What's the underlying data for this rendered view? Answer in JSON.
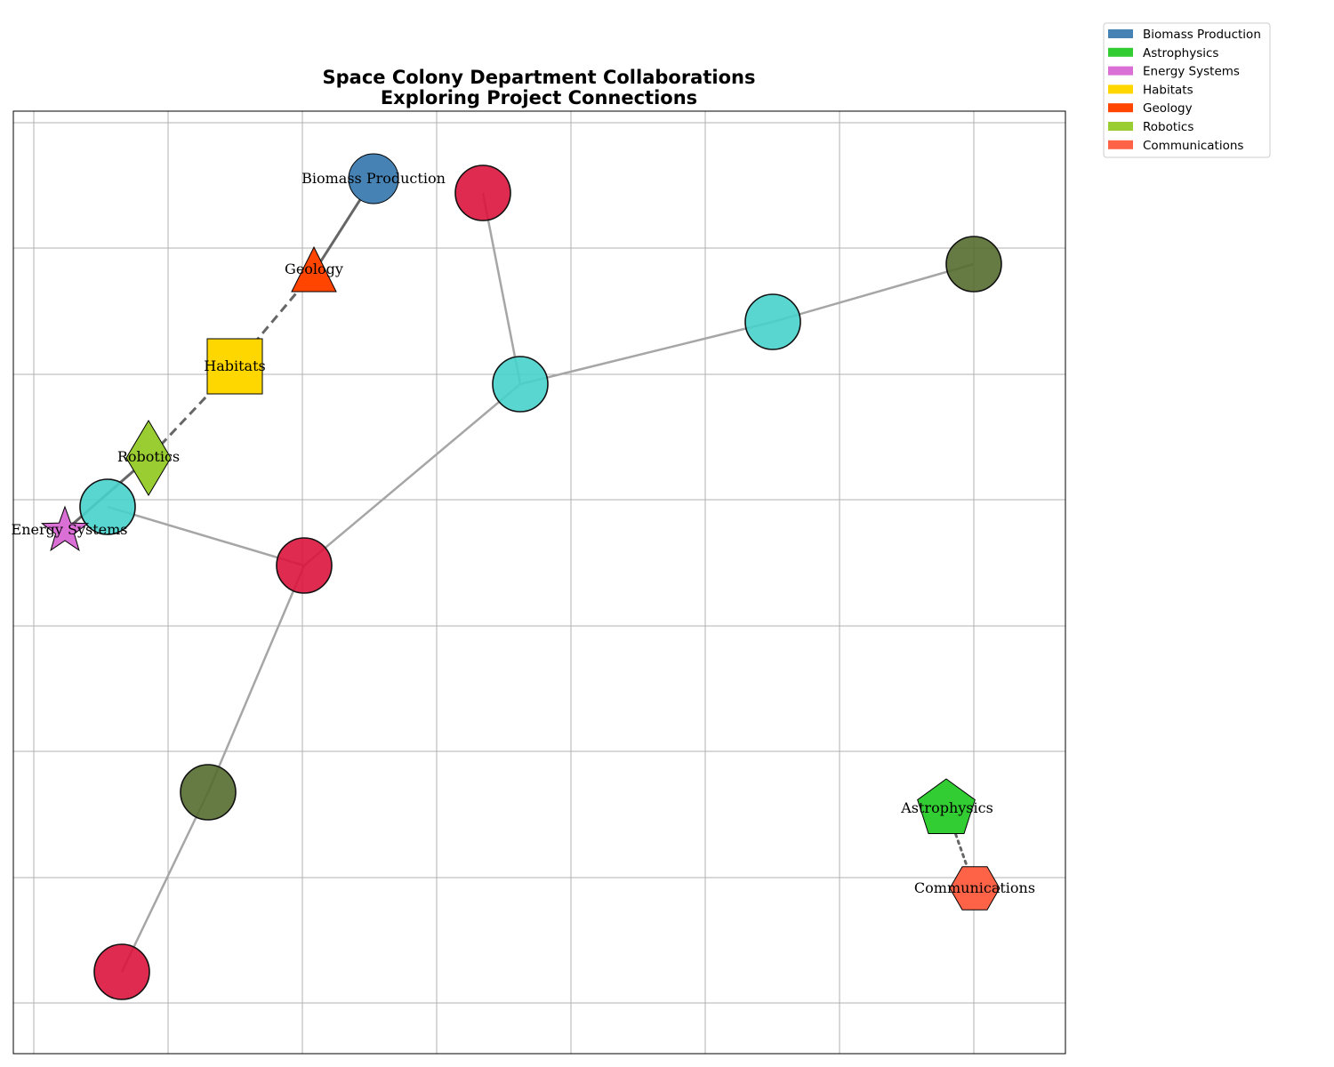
{
  "title": {
    "line1": "Space Colony Department Collaborations",
    "line2": "Exploring Project Connections"
  },
  "legend": [
    {
      "label": "Biomass Production",
      "color": "#4682B4"
    },
    {
      "label": "Astrophysics",
      "color": "#32CD32"
    },
    {
      "label": "Energy Systems",
      "color": "#DA70D6"
    },
    {
      "label": "Habitats",
      "color": "#FFD700"
    },
    {
      "label": "Geology",
      "color": "#FF4500"
    },
    {
      "label": "Robotics",
      "color": "#9ACD32"
    },
    {
      "label": "Communications",
      "color": "#FF6347"
    }
  ],
  "departments": [
    {
      "id": "biomass",
      "label": "Biomass Production",
      "shape": "circle",
      "color": "#4682B4"
    },
    {
      "id": "geology",
      "label": "Geology",
      "shape": "triangle",
      "color": "#FF4500"
    },
    {
      "id": "habitats",
      "label": "Habitats",
      "shape": "square",
      "color": "#FFD700"
    },
    {
      "id": "robotics",
      "label": "Robotics",
      "shape": "diamond",
      "color": "#9ACD32"
    },
    {
      "id": "energy",
      "label": "Energy Systems",
      "shape": "star",
      "color": "#DA70D6"
    },
    {
      "id": "astro",
      "label": "Astrophysics",
      "shape": "pentagon",
      "color": "#32CD32"
    },
    {
      "id": "comms",
      "label": "Communications",
      "shape": "hexagon",
      "color": "#FF6347"
    }
  ],
  "project_node_colors": {
    "red": "#DC143C",
    "cyan": "#48D1CC",
    "olive": "#556B2F"
  },
  "connections": [
    {
      "from": "biomass",
      "to": "geology",
      "style": "solid"
    },
    {
      "from": "geology",
      "to": "habitats",
      "style": "dashed"
    },
    {
      "from": "habitats",
      "to": "robotics",
      "style": "dashed"
    },
    {
      "from": "robotics",
      "to": "energy",
      "style": "solid"
    },
    {
      "from": "astro",
      "to": "comms",
      "style": "dotted"
    }
  ]
}
